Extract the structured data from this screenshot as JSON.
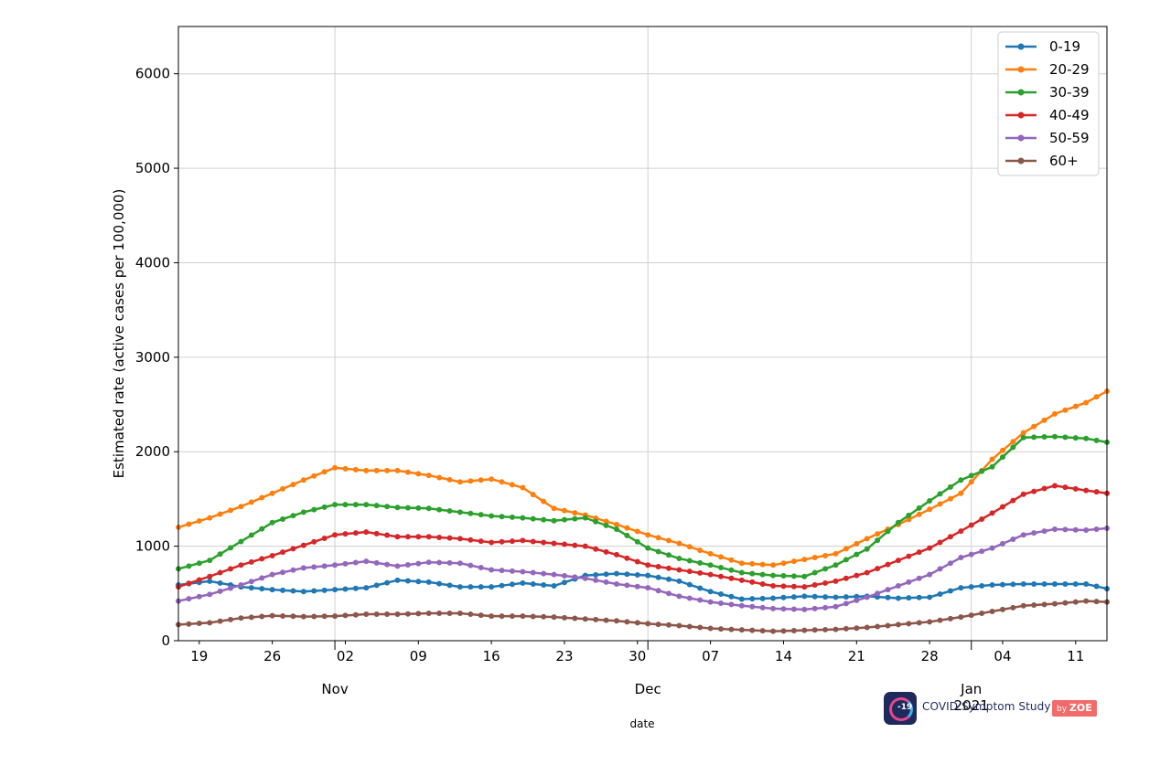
{
  "chart_data": {
    "type": "line",
    "title": "",
    "xlabel": "date",
    "ylabel": "Estimated rate (active cases per 100,000)",
    "ylim": [
      0,
      6500
    ],
    "yticks": [
      0,
      1000,
      2000,
      3000,
      4000,
      5000,
      6000
    ],
    "x_start": "2020-10-17",
    "x_end": "2021-01-14",
    "day_tick_labels": [
      "19",
      "26",
      "02",
      "09",
      "16",
      "23",
      "30",
      "07",
      "14",
      "21",
      "28",
      "04",
      "11"
    ],
    "month_labels": [
      "Nov",
      "Dec",
      "Jan\n2021"
    ],
    "grid": true,
    "legend_position": "top-right",
    "colors": {
      "0-19": "#1f77b4",
      "20-29": "#ff7f0e",
      "30-39": "#2ca02c",
      "40-49": "#d62728",
      "50-59": "#9467bd",
      "60+": "#8c564b"
    },
    "series": [
      {
        "name": "0-19",
        "x_dates": [
          "2020-10-17",
          "2020-10-20",
          "2020-10-23",
          "2020-10-26",
          "2020-10-29",
          "2020-11-01",
          "2020-11-04",
          "2020-11-07",
          "2020-11-10",
          "2020-11-13",
          "2020-11-16",
          "2020-11-19",
          "2020-11-22",
          "2020-11-25",
          "2020-11-28",
          "2020-12-01",
          "2020-12-04",
          "2020-12-07",
          "2020-12-10",
          "2020-12-13",
          "2020-12-16",
          "2020-12-19",
          "2020-12-22",
          "2020-12-25",
          "2020-12-28",
          "2020-12-31",
          "2021-01-03",
          "2021-01-06",
          "2021-01-09",
          "2021-01-12",
          "2021-01-14"
        ],
        "values": [
          590,
          630,
          570,
          540,
          520,
          540,
          560,
          640,
          620,
          570,
          570,
          610,
          580,
          690,
          710,
          690,
          630,
          520,
          440,
          450,
          470,
          460,
          470,
          450,
          460,
          560,
          590,
          600,
          600,
          600,
          550
        ]
      },
      {
        "name": "20-29",
        "x_dates": [
          "2020-10-17",
          "2020-10-20",
          "2020-10-23",
          "2020-10-26",
          "2020-10-29",
          "2020-11-01",
          "2020-11-04",
          "2020-11-07",
          "2020-11-10",
          "2020-11-13",
          "2020-11-16",
          "2020-11-19",
          "2020-11-22",
          "2020-11-25",
          "2020-11-28",
          "2020-12-01",
          "2020-12-04",
          "2020-12-07",
          "2020-12-10",
          "2020-12-13",
          "2020-12-16",
          "2020-12-19",
          "2020-12-22",
          "2020-12-25",
          "2020-12-28",
          "2020-12-31",
          "2021-01-03",
          "2021-01-06",
          "2021-01-09",
          "2021-01-12",
          "2021-01-14"
        ],
        "values": [
          1200,
          1300,
          1420,
          1560,
          1700,
          1830,
          1800,
          1800,
          1750,
          1680,
          1710,
          1620,
          1400,
          1330,
          1230,
          1120,
          1030,
          920,
          820,
          800,
          860,
          920,
          1080,
          1230,
          1390,
          1560,
          1920,
          2200,
          2400,
          2520,
          2640
        ]
      },
      {
        "name": "30-39",
        "x_dates": [
          "2020-10-17",
          "2020-10-20",
          "2020-10-23",
          "2020-10-26",
          "2020-10-29",
          "2020-11-01",
          "2020-11-04",
          "2020-11-07",
          "2020-11-10",
          "2020-11-13",
          "2020-11-16",
          "2020-11-19",
          "2020-11-22",
          "2020-11-25",
          "2020-11-28",
          "2020-12-01",
          "2020-12-04",
          "2020-12-07",
          "2020-12-10",
          "2020-12-13",
          "2020-12-16",
          "2020-12-19",
          "2020-12-22",
          "2020-12-25",
          "2020-12-28",
          "2020-12-31",
          "2021-01-03",
          "2021-01-06",
          "2021-01-09",
          "2021-01-12",
          "2021-01-14"
        ],
        "values": [
          760,
          850,
          1050,
          1250,
          1360,
          1440,
          1440,
          1410,
          1400,
          1360,
          1320,
          1300,
          1270,
          1300,
          1180,
          980,
          870,
          800,
          720,
          690,
          680,
          800,
          970,
          1250,
          1480,
          1700,
          1840,
          2150,
          2160,
          2140,
          2100
        ]
      },
      {
        "name": "40-49",
        "x_dates": [
          "2020-10-17",
          "2020-10-20",
          "2020-10-23",
          "2020-10-26",
          "2020-10-29",
          "2020-11-01",
          "2020-11-04",
          "2020-11-07",
          "2020-11-10",
          "2020-11-13",
          "2020-11-16",
          "2020-11-19",
          "2020-11-22",
          "2020-11-25",
          "2020-11-28",
          "2020-12-01",
          "2020-12-04",
          "2020-12-07",
          "2020-12-10",
          "2020-12-13",
          "2020-12-16",
          "2020-12-19",
          "2020-12-22",
          "2020-12-25",
          "2020-12-28",
          "2020-12-31",
          "2021-01-03",
          "2021-01-06",
          "2021-01-09",
          "2021-01-12",
          "2021-01-14"
        ],
        "values": [
          570,
          680,
          800,
          900,
          1010,
          1120,
          1150,
          1100,
          1100,
          1080,
          1040,
          1060,
          1030,
          1000,
          910,
          800,
          750,
          700,
          640,
          580,
          570,
          630,
          720,
          850,
          980,
          1160,
          1350,
          1550,
          1640,
          1590,
          1560
        ]
      },
      {
        "name": "50-59",
        "x_dates": [
          "2020-10-17",
          "2020-10-20",
          "2020-10-23",
          "2020-10-26",
          "2020-10-29",
          "2020-11-01",
          "2020-11-04",
          "2020-11-07",
          "2020-11-10",
          "2020-11-13",
          "2020-11-16",
          "2020-11-19",
          "2020-11-22",
          "2020-11-25",
          "2020-11-28",
          "2020-12-01",
          "2020-12-04",
          "2020-12-07",
          "2020-12-10",
          "2020-12-13",
          "2020-12-16",
          "2020-12-19",
          "2020-12-22",
          "2020-12-25",
          "2020-12-28",
          "2020-12-31",
          "2021-01-03",
          "2021-01-06",
          "2021-01-09",
          "2021-01-12",
          "2021-01-14"
        ],
        "values": [
          420,
          490,
          590,
          700,
          770,
          800,
          840,
          790,
          830,
          820,
          750,
          730,
          700,
          660,
          600,
          560,
          470,
          410,
          370,
          340,
          330,
          360,
          460,
          580,
          700,
          880,
          980,
          1120,
          1180,
          1170,
          1190
        ]
      },
      {
        "name": "60+",
        "x_dates": [
          "2020-10-17",
          "2020-10-20",
          "2020-10-23",
          "2020-10-26",
          "2020-10-29",
          "2020-11-01",
          "2020-11-04",
          "2020-11-07",
          "2020-11-10",
          "2020-11-13",
          "2020-11-16",
          "2020-11-19",
          "2020-11-22",
          "2020-11-25",
          "2020-11-28",
          "2020-12-01",
          "2020-12-04",
          "2020-12-07",
          "2020-12-10",
          "2020-12-13",
          "2020-12-16",
          "2020-12-19",
          "2020-12-22",
          "2020-12-25",
          "2020-12-28",
          "2020-12-31",
          "2021-01-03",
          "2021-01-06",
          "2021-01-09",
          "2021-01-12",
          "2021-01-14"
        ],
        "values": [
          170,
          190,
          240,
          265,
          255,
          260,
          280,
          280,
          290,
          290,
          260,
          260,
          250,
          230,
          210,
          180,
          160,
          130,
          115,
          100,
          110,
          120,
          140,
          170,
          200,
          250,
          310,
          370,
          390,
          420,
          410
        ]
      }
    ]
  },
  "logo": {
    "app_name": "COVID Symptom Study",
    "by_label": "by",
    "brand_label": "ZOE",
    "icon_text": "-19"
  }
}
